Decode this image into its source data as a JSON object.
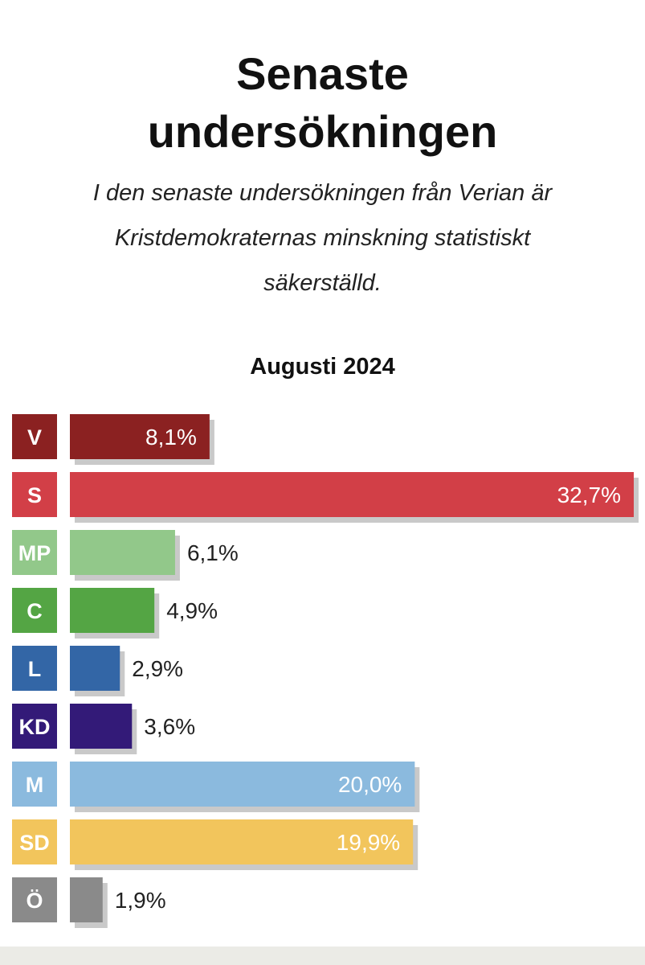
{
  "header": {
    "title_line1": "Senaste",
    "title_line2": "undersökningen",
    "subtitle_line1": "I den senaste undersökningen från Verian är",
    "subtitle_line2": "Kristdemokraternas minskning statistiskt",
    "subtitle_line3": "säkerställd."
  },
  "chart_data": {
    "type": "bar",
    "orientation": "horizontal",
    "title": "Augusti 2024",
    "categories": [
      "V",
      "S",
      "MP",
      "C",
      "L",
      "KD",
      "M",
      "SD",
      "Ö"
    ],
    "values": [
      8.1,
      32.7,
      6.1,
      4.9,
      2.9,
      3.6,
      20.0,
      19.9,
      1.9
    ],
    "value_labels": [
      "8,1%",
      "32,7%",
      "6,1%",
      "4,9%",
      "2,9%",
      "3,6%",
      "20,0%",
      "19,9%",
      "1,9%"
    ],
    "colors": [
      "#8b2121",
      "#d23f47",
      "#92c88a",
      "#54a544",
      "#3366a6",
      "#331a78",
      "#8bbade",
      "#f2c55c",
      "#8a8a8a"
    ],
    "unit": "%",
    "xlim": [
      0,
      32.7
    ],
    "grid": false,
    "legend": "none"
  }
}
